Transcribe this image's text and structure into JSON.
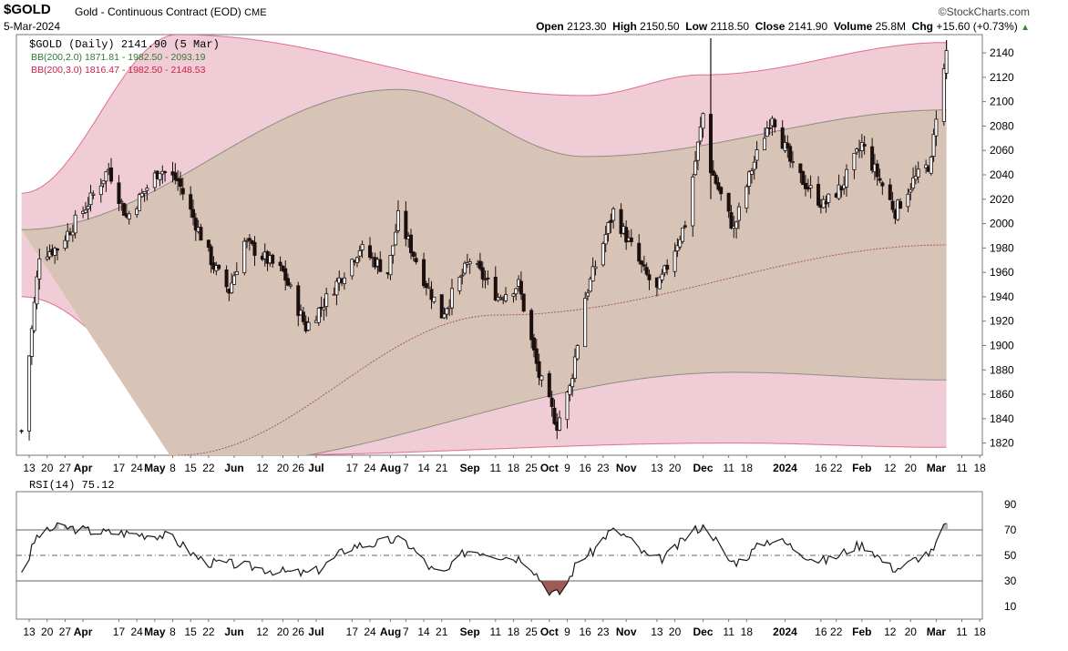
{
  "header": {
    "symbol": "$GOLD",
    "description": "Gold - Continuous Contract (EOD)",
    "exchange": "CME",
    "date": "5-Mar-2024",
    "brand": "©StockCharts.com",
    "open_label": "Open",
    "open": "2123.30",
    "high_label": "High",
    "high": "2150.50",
    "low_label": "Low",
    "low": "2118.50",
    "close_label": "Close",
    "close": "2141.90",
    "volume_label": "Volume",
    "volume": "25.8M",
    "chg_label": "Chg",
    "chg": "+15.60 (+0.73%)"
  },
  "legend": {
    "price": "$GOLD (Daily) 2141.90 (5 Mar)",
    "bb2": "BB(200,2.0) 1871.81 - 1982.50 - 2093.19",
    "bb3": "BB(200,3.0) 1816.47 - 1982.50 - 2148.53",
    "rsi": "RSI(14) 75.12"
  },
  "colors": {
    "bb3_fill": "#f0cdd6",
    "bb3_line": "#e26d8a",
    "bb2_fill": "#d8c4b6",
    "bb2_line": "#8c8c84",
    "ma_line": "#a8566a",
    "candle": "#1b0f0f",
    "rsi_line": "#1a1a1a",
    "rsi_oversold_fill": "#9e5a55",
    "bb2_legend": "#2f7a2f",
    "bb3_legend": "#cc1f4a",
    "up_arrow": "#2f8a2f"
  },
  "chart_data": [
    {
      "type": "candlestick",
      "title": "$GOLD (Daily)",
      "ylim": [
        1810,
        2155
      ],
      "yticks": [
        1820,
        1840,
        1860,
        1880,
        1900,
        1920,
        1940,
        1960,
        1980,
        2000,
        2020,
        2040,
        2060,
        2080,
        2100,
        2120,
        2140
      ],
      "x_tick_labels": [
        "13",
        "20",
        "27",
        "Apr",
        "17",
        "24",
        "May",
        "8",
        "15",
        "22",
        "Jun",
        "12",
        "20",
        "26",
        "Jul",
        "17",
        "24",
        "Aug",
        "7",
        "14",
        "21",
        "Sep",
        "11",
        "18",
        "25",
        "Oct",
        "9",
        "16",
        "23",
        "Nov",
        "13",
        "20",
        "Dec",
        "11",
        "18",
        "2024",
        "16",
        "22",
        "Feb",
        "12",
        "20",
        "Mar",
        "11",
        "18"
      ],
      "close_key_points": [
        {
          "date": "2023-03-10",
          "close": 1830
        },
        {
          "date": "2023-03-17",
          "close": 1975
        },
        {
          "date": "2023-03-24",
          "close": 1980
        },
        {
          "date": "2023-04-06",
          "close": 2020
        },
        {
          "date": "2023-04-13",
          "close": 2045
        },
        {
          "date": "2023-04-20",
          "close": 2005
        },
        {
          "date": "2023-05-03",
          "close": 2045
        },
        {
          "date": "2023-05-10",
          "close": 2035
        },
        {
          "date": "2023-05-24",
          "close": 1965
        },
        {
          "date": "2023-05-30",
          "close": 1945
        },
        {
          "date": "2023-06-05",
          "close": 1985
        },
        {
          "date": "2023-06-20",
          "close": 1960
        },
        {
          "date": "2023-06-29",
          "close": 1915
        },
        {
          "date": "2023-07-06",
          "close": 1935
        },
        {
          "date": "2023-07-20",
          "close": 1980
        },
        {
          "date": "2023-07-31",
          "close": 1960
        },
        {
          "date": "2023-08-04",
          "close": 2005
        },
        {
          "date": "2023-08-14",
          "close": 1955
        },
        {
          "date": "2023-08-21",
          "close": 1925
        },
        {
          "date": "2023-09-01",
          "close": 1970
        },
        {
          "date": "2023-09-12",
          "close": 1940
        },
        {
          "date": "2023-09-20",
          "close": 1950
        },
        {
          "date": "2023-09-28",
          "close": 1875
        },
        {
          "date": "2023-10-05",
          "close": 1835
        },
        {
          "date": "2023-10-10",
          "close": 1865
        },
        {
          "date": "2023-10-16",
          "close": 1940
        },
        {
          "date": "2023-10-27",
          "close": 2010
        },
        {
          "date": "2023-11-08",
          "close": 1960
        },
        {
          "date": "2023-11-13",
          "close": 1945
        },
        {
          "date": "2023-11-24",
          "close": 2000
        },
        {
          "date": "2023-12-01",
          "close": 2090
        },
        {
          "date": "2023-12-04",
          "close": 2045
        },
        {
          "date": "2023-12-13",
          "close": 1995
        },
        {
          "date": "2023-12-20",
          "close": 2045
        },
        {
          "date": "2023-12-28",
          "close": 2090
        },
        {
          "date": "2024-01-05",
          "close": 2045
        },
        {
          "date": "2024-01-17",
          "close": 2015
        },
        {
          "date": "2024-01-24",
          "close": 2030
        },
        {
          "date": "2024-02-01",
          "close": 2065
        },
        {
          "date": "2024-02-14",
          "close": 2010
        },
        {
          "date": "2024-02-21",
          "close": 2035
        },
        {
          "date": "2024-02-28",
          "close": 2050
        },
        {
          "date": "2024-03-01",
          "close": 2090
        },
        {
          "date": "2024-03-04",
          "close": 2125
        },
        {
          "date": "2024-03-05",
          "close": 2141.9
        }
      ],
      "series": [
        {
          "name": "BB(200,3.0)",
          "upper_key_points": [
            {
              "date": "2023-03-10",
              "value": 2025
            },
            {
              "date": "2023-05-10",
              "value": 2155
            },
            {
              "date": "2023-10-16",
              "value": 2105
            },
            {
              "date": "2023-12-01",
              "value": 2122
            },
            {
              "date": "2024-03-05",
              "value": 2148.53
            }
          ],
          "lower_key_points": [
            {
              "date": "2023-03-10",
              "value": 1940
            },
            {
              "date": "2023-06-05",
              "value": 1810
            },
            {
              "date": "2023-12-13",
              "value": 1820
            },
            {
              "date": "2024-03-05",
              "value": 1816.47
            }
          ]
        },
        {
          "name": "BB(200,2.0)",
          "upper_key_points": [
            {
              "date": "2023-03-10",
              "value": 1995
            },
            {
              "date": "2023-08-04",
              "value": 2110
            },
            {
              "date": "2023-10-16",
              "value": 2055
            },
            {
              "date": "2024-03-05",
              "value": 2093.19
            }
          ],
          "lower_key_points": [
            {
              "date": "2023-05-10",
              "value": 1800
            },
            {
              "date": "2023-12-13",
              "value": 1878
            },
            {
              "date": "2024-03-05",
              "value": 1871.81
            }
          ]
        },
        {
          "name": "middle band",
          "key_points": [
            {
              "date": "2023-05-10",
              "value": 1810
            },
            {
              "date": "2023-09-12",
              "value": 1925
            },
            {
              "date": "2024-03-05",
              "value": 1982.5
            }
          ]
        }
      ]
    },
    {
      "type": "line",
      "title": "RSI(14)",
      "ylim": [
        0,
        100
      ],
      "yticks": [
        10,
        30,
        50,
        70,
        90
      ],
      "reference_lines": [
        30,
        50,
        70
      ],
      "last_value": 75.12,
      "key_points": [
        {
          "date": "2023-03-10",
          "value": 38
        },
        {
          "date": "2023-03-17",
          "value": 66
        },
        {
          "date": "2023-03-24",
          "value": 72
        },
        {
          "date": "2023-04-13",
          "value": 68
        },
        {
          "date": "2023-05-03",
          "value": 66
        },
        {
          "date": "2023-05-24",
          "value": 44
        },
        {
          "date": "2023-06-29",
          "value": 36
        },
        {
          "date": "2023-07-20",
          "value": 58
        },
        {
          "date": "2023-08-04",
          "value": 62
        },
        {
          "date": "2023-08-21",
          "value": 36
        },
        {
          "date": "2023-09-01",
          "value": 54
        },
        {
          "date": "2023-09-20",
          "value": 48
        },
        {
          "date": "2023-10-05",
          "value": 20
        },
        {
          "date": "2023-10-16",
          "value": 50
        },
        {
          "date": "2023-10-27",
          "value": 69
        },
        {
          "date": "2023-11-13",
          "value": 47
        },
        {
          "date": "2023-12-01",
          "value": 72
        },
        {
          "date": "2023-12-13",
          "value": 45
        },
        {
          "date": "2023-12-28",
          "value": 62
        },
        {
          "date": "2024-01-17",
          "value": 46
        },
        {
          "date": "2024-02-01",
          "value": 58
        },
        {
          "date": "2024-02-14",
          "value": 40
        },
        {
          "date": "2024-02-28",
          "value": 52
        },
        {
          "date": "2024-03-05",
          "value": 75.12
        }
      ]
    }
  ]
}
